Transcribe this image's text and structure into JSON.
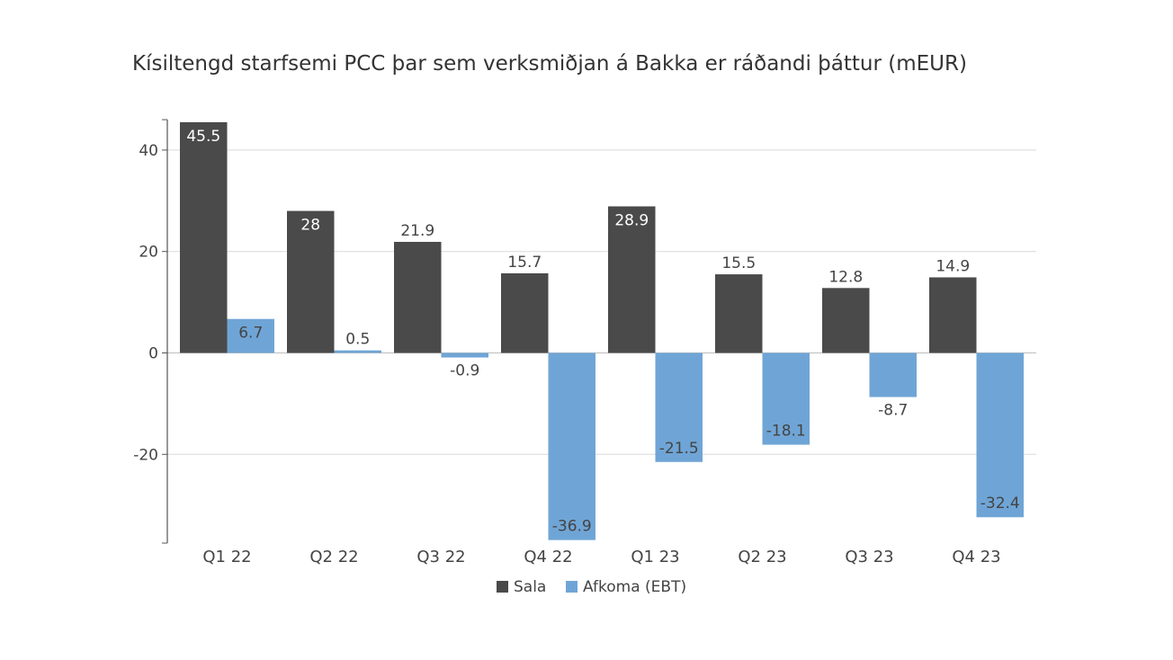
{
  "chart_data": {
    "type": "bar",
    "title": "Kísiltengd starfsemi PCC þar sem verksmiðjan á Bakka er ráðandi þáttur (mEUR)",
    "xlabel": "",
    "ylabel": "",
    "categories": [
      "Q1 22",
      "Q2 22",
      "Q3 22",
      "Q4 22",
      "Q1 23",
      "Q2 23",
      "Q3 23",
      "Q4 23"
    ],
    "series": [
      {
        "name": "Sala",
        "color": "#4a4a4a",
        "values": [
          45.5,
          28,
          21.9,
          15.7,
          28.9,
          15.5,
          12.8,
          14.9
        ],
        "labels": [
          "45.5",
          "28",
          "21.9",
          "15.7",
          "28.9",
          "15.5",
          "12.8",
          "14.9"
        ]
      },
      {
        "name": "Afkoma (EBT)",
        "color": "#6fa5d6",
        "values": [
          6.7,
          0.5,
          -0.9,
          -36.9,
          -21.5,
          -18.1,
          -8.7,
          -32.4
        ],
        "labels": [
          "6.7",
          "0.5",
          "-0.9",
          "-36.9",
          "-21.5",
          "-18.1",
          "-8.7",
          "-32.4"
        ]
      }
    ],
    "ylim": [
      -37.5,
      46
    ],
    "yticks": [
      40,
      20,
      0,
      -20
    ],
    "ytick_labels": [
      "40",
      "20",
      "0",
      "-20"
    ],
    "grid": true,
    "legend_position": "bottom-center"
  }
}
